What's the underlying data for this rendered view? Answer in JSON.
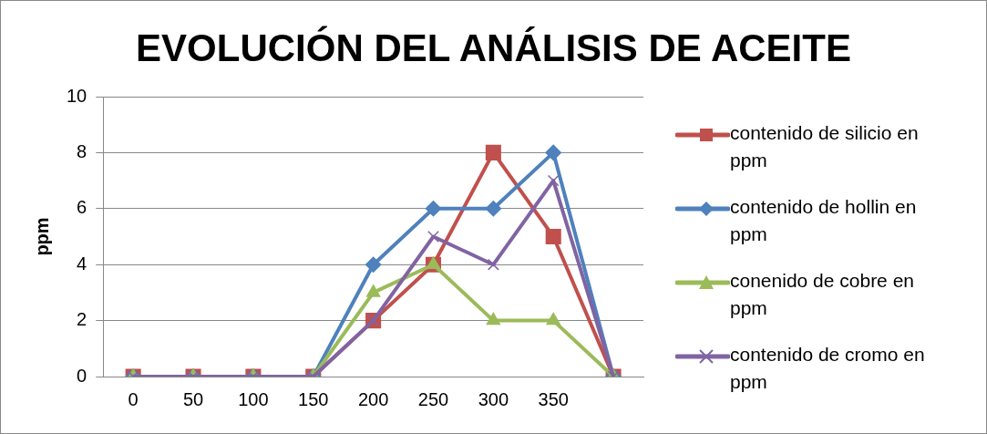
{
  "chart_data": {
    "type": "line",
    "title": "EVOLUCIÓN DEL ANÁLISIS DE ACEITE",
    "ylabel": "ppm",
    "categories": [
      "0",
      "50",
      "100",
      "150",
      "200",
      "250",
      "300",
      "350",
      null
    ],
    "series": [
      {
        "name": "contenido de silicio en ppm",
        "color": "#c0504d",
        "marker": "square",
        "values": [
          0,
          0,
          0,
          0,
          2,
          4,
          8,
          5,
          0
        ]
      },
      {
        "name": "contenido de hollin en ppm",
        "color": "#4f81bd",
        "marker": "diamond",
        "values": [
          0,
          0,
          0,
          0,
          4,
          6,
          6,
          8,
          0
        ]
      },
      {
        "name": "conenido de cobre en ppm",
        "color": "#9bbb59",
        "marker": "triangle",
        "values": [
          0,
          0,
          0,
          0,
          3,
          4,
          2,
          2,
          0
        ]
      },
      {
        "name": "contenido de cromo en ppm",
        "color": "#8064a2",
        "marker": "cross",
        "values": [
          0,
          0,
          0,
          0,
          2,
          5,
          4,
          7,
          0
        ]
      }
    ],
    "ylim": [
      0,
      10
    ],
    "yticks": [
      0,
      2,
      4,
      6,
      8,
      10
    ],
    "grid": "y",
    "legend": "right"
  }
}
